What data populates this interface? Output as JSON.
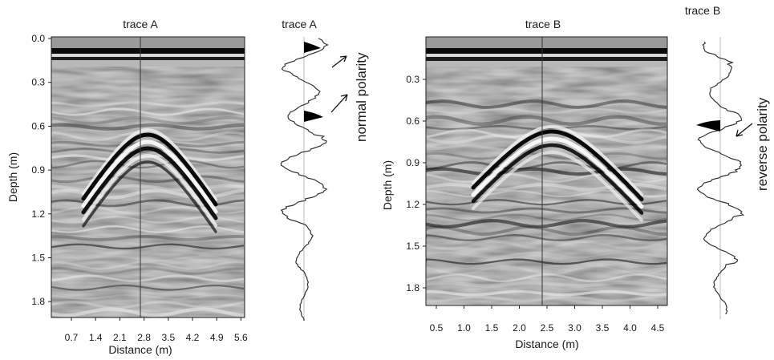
{
  "figure": {
    "panels": [
      {
        "title": "trace A",
        "ylabel": "Depth (m)",
        "xlabel": "Distance (m)",
        "yticks": [
          "0.0",
          "0.3",
          "0.6",
          "0.9",
          "1.2",
          "1.5",
          "1.8"
        ],
        "xticks": [
          "0.7",
          "1.4",
          "2.1",
          "2.8",
          "3.5",
          "4.2",
          "4.9",
          "5.6"
        ]
      },
      {
        "title": "trace B",
        "ylabel": "Depth (m)",
        "xlabel": "Distance (m)",
        "yticks": [
          "0.3",
          "0.6",
          "0.9",
          "1.2",
          "1.5",
          "1.8"
        ],
        "xticks": [
          "0.5",
          "1.0",
          "1.5",
          "2.0",
          "2.5",
          "3.0",
          "3.5",
          "4.0",
          "4.5"
        ]
      }
    ],
    "traces": [
      {
        "title": "trace A",
        "annotation": "normal polarity"
      },
      {
        "title": "trace B",
        "annotation": "reverse polarity"
      }
    ],
    "colors": {
      "ink": "#1a1a1a",
      "reflector": "#000000",
      "background": "#ffffff"
    }
  }
}
